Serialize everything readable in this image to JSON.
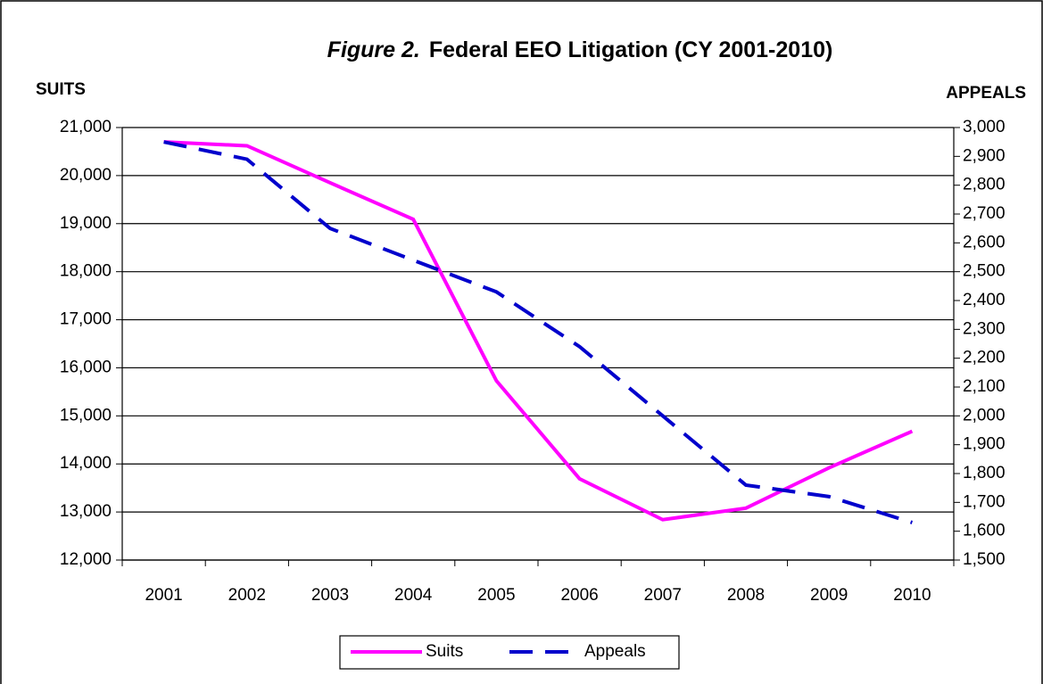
{
  "chart_data": {
    "type": "line",
    "title": [
      "Figure 2.",
      "Federal EEO Litigation (CY 2001-2010)"
    ],
    "y_label": "SUITS",
    "y2_label": "APPEALS",
    "categories": [
      "2001",
      "2002",
      "2003",
      "2004",
      "2005",
      "2006",
      "2007",
      "2008",
      "2009",
      "2010"
    ],
    "series": [
      {
        "name": "Suits",
        "color": "#ff00ff",
        "dash": "solid",
        "values": [
          20700,
          20620,
          19850,
          19090,
          15730,
          13690,
          12840,
          13080,
          13920,
          14680
        ]
      },
      {
        "name": "Appeals",
        "color": "#0000cc",
        "dash": "dashed",
        "axis": "y2",
        "values": [
          2950,
          2890,
          2650,
          2540,
          2430,
          2240,
          2000,
          1760,
          1720,
          1630
        ]
      }
    ],
    "ylim": [
      12000,
      21000
    ],
    "yticks": [
      {
        "value": 12000,
        "label": "12,000"
      },
      {
        "value": 13000,
        "label": "13,000"
      },
      {
        "value": 14000,
        "label": "14,000"
      },
      {
        "value": 15000,
        "label": "15,000"
      },
      {
        "value": 16000,
        "label": "16,000"
      },
      {
        "value": 17000,
        "label": "17,000"
      },
      {
        "value": 18000,
        "label": "18,000"
      },
      {
        "value": 19000,
        "label": "19,000"
      },
      {
        "value": 20000,
        "label": "20,000"
      },
      {
        "value": 21000,
        "label": "21,000"
      }
    ],
    "y2lim": [
      1500,
      3000
    ],
    "y2ticks": [
      {
        "value": 1500,
        "label": "1,500"
      },
      {
        "value": 1600,
        "label": "1,600"
      },
      {
        "value": 1700,
        "label": "1,700"
      },
      {
        "value": 1800,
        "label": "1,800"
      },
      {
        "value": 1900,
        "label": "1,900"
      },
      {
        "value": 2000,
        "label": "2,000"
      },
      {
        "value": 2100,
        "label": "2,100"
      },
      {
        "value": 2200,
        "label": "2,200"
      },
      {
        "value": 2300,
        "label": "2,300"
      },
      {
        "value": 2400,
        "label": "2,400"
      },
      {
        "value": 2500,
        "label": "2,500"
      },
      {
        "value": 2600,
        "label": "2,600"
      },
      {
        "value": 2700,
        "label": "2,700"
      },
      {
        "value": 2800,
        "label": "2,800"
      },
      {
        "value": 2900,
        "label": "2,900"
      },
      {
        "value": 3000,
        "label": "3,000"
      }
    ],
    "grid": true,
    "legend": "bottom"
  }
}
